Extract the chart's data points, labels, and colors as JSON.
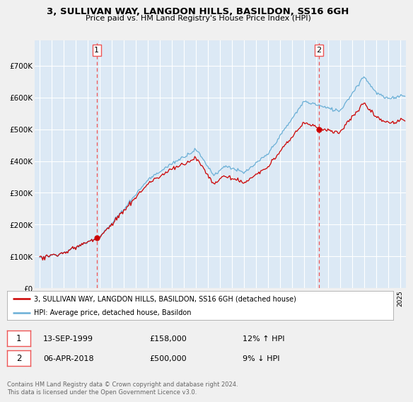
{
  "title": "3, SULLIVAN WAY, LANGDON HILLS, BASILDON, SS16 6GH",
  "subtitle": "Price paid vs. HM Land Registry's House Price Index (HPI)",
  "legend_line1": "3, SULLIVAN WAY, LANGDON HILLS, BASILDON, SS16 6GH (detached house)",
  "legend_line2": "HPI: Average price, detached house, Basildon",
  "footnote": "Contains HM Land Registry data © Crown copyright and database right 2024.\nThis data is licensed under the Open Government Licence v3.0.",
  "sale1_date": "13-SEP-1999",
  "sale1_price": "£158,000",
  "sale1_hpi": "12% ↑ HPI",
  "sale2_date": "06-APR-2018",
  "sale2_price": "£500,000",
  "sale2_hpi": "9% ↓ HPI",
  "sale1_year": 1999.75,
  "sale1_value": 158000,
  "sale2_year": 2018.25,
  "sale2_value": 500000,
  "hpi_color": "#6aafd6",
  "price_color": "#cc0000",
  "marker_color": "#cc0000",
  "vline_color": "#ee5555",
  "bg_color": "#f0f0f0",
  "plot_bg": "#dce9f5",
  "ylim": [
    0,
    780000
  ],
  "yticks": [
    0,
    100000,
    200000,
    300000,
    400000,
    500000,
    600000,
    700000
  ],
  "ytick_labels": [
    "£0",
    "£100K",
    "£200K",
    "£300K",
    "£400K",
    "£500K",
    "£600K",
    "£700K"
  ],
  "xstart": 1995,
  "xend": 2025
}
